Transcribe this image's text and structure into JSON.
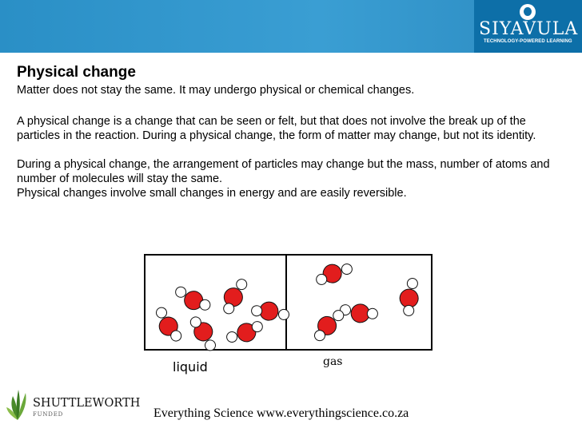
{
  "brand": {
    "name": "SIYAVULA",
    "tagline": "TECHNOLOGY-POWERED LEARNING",
    "header_color": "#2a8fc6",
    "logo_color": "#0d6fa8"
  },
  "slide": {
    "title": "Physical change",
    "paragraphs": [
      "Matter does not stay the same. It may undergo physical or chemical changes.",
      " A physical change is a change that can be seen or felt, but that does not involve the break up of the particles in the reaction. During a physical change, the form of matter may change, but not its identity.",
      " During a physical change, the arrangement of particles may change but the mass, number of atoms and number of molecules will stay the same.",
      "Physical changes involve small changes in energy and are easily reversible."
    ]
  },
  "diagram": {
    "labels": {
      "liquid": "liquid",
      "gas": "gas"
    },
    "oxygen_color": "#e21d1d",
    "hydrogen_color": "#ffffff"
  },
  "sponsor": {
    "name": "SHUTTLEWORTH",
    "sub": "FUNDED",
    "icon": "leaf-icon",
    "color": "#4a8a2a"
  },
  "footer": {
    "text": "Everything Science www.everythingscience.co.za"
  }
}
